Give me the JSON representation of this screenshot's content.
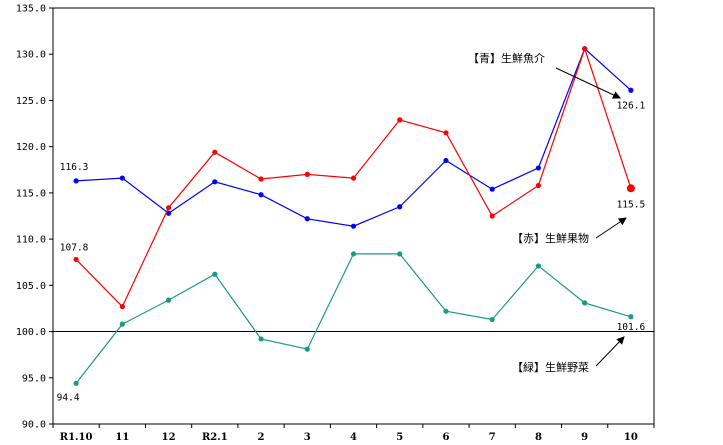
{
  "chart_data": {
    "type": "line",
    "title": "",
    "xlabel": "",
    "ylabel": "",
    "categories": [
      "R1.10",
      "11",
      "12",
      "R2.1",
      "2",
      "3",
      "4",
      "5",
      "6",
      "7",
      "8",
      "9",
      "10"
    ],
    "y_ticks": [
      "90.0",
      "95.0",
      "100.0",
      "105.0",
      "110.0",
      "115.0",
      "120.0",
      "125.0",
      "130.0",
      "135.0"
    ],
    "ylim": [
      90,
      135
    ],
    "reference_line": 100,
    "grid": false,
    "series": [
      {
        "name": "【青】生鮮魚介",
        "color": "#0000ff",
        "values": [
          116.3,
          116.6,
          112.8,
          116.2,
          114.8,
          112.2,
          111.4,
          113.5,
          118.5,
          115.4,
          117.7,
          130.6,
          126.1
        ],
        "labels": [
          {
            "index": 0,
            "text": "116.3"
          },
          {
            "index": 12,
            "text": "126.1"
          }
        ]
      },
      {
        "name": "【赤】生鮮果物",
        "color": "#ff0000",
        "values": [
          107.8,
          102.7,
          113.4,
          119.4,
          116.5,
          117.0,
          116.6,
          122.9,
          121.5,
          112.5,
          115.8,
          130.6,
          115.5
        ],
        "labels": [
          {
            "index": 0,
            "text": "107.8"
          },
          {
            "index": 12,
            "text": "115.5"
          }
        ]
      },
      {
        "name": "【緑】生鮮野菜",
        "color": "#1a9a82",
        "values": [
          94.4,
          100.8,
          103.4,
          106.2,
          99.2,
          98.1,
          108.4,
          108.4,
          102.2,
          101.3,
          107.1,
          103.1,
          101.6
        ],
        "labels": [
          {
            "index": 0,
            "text": "94.4"
          },
          {
            "index": 12,
            "text": "101.6"
          }
        ]
      }
    ]
  }
}
